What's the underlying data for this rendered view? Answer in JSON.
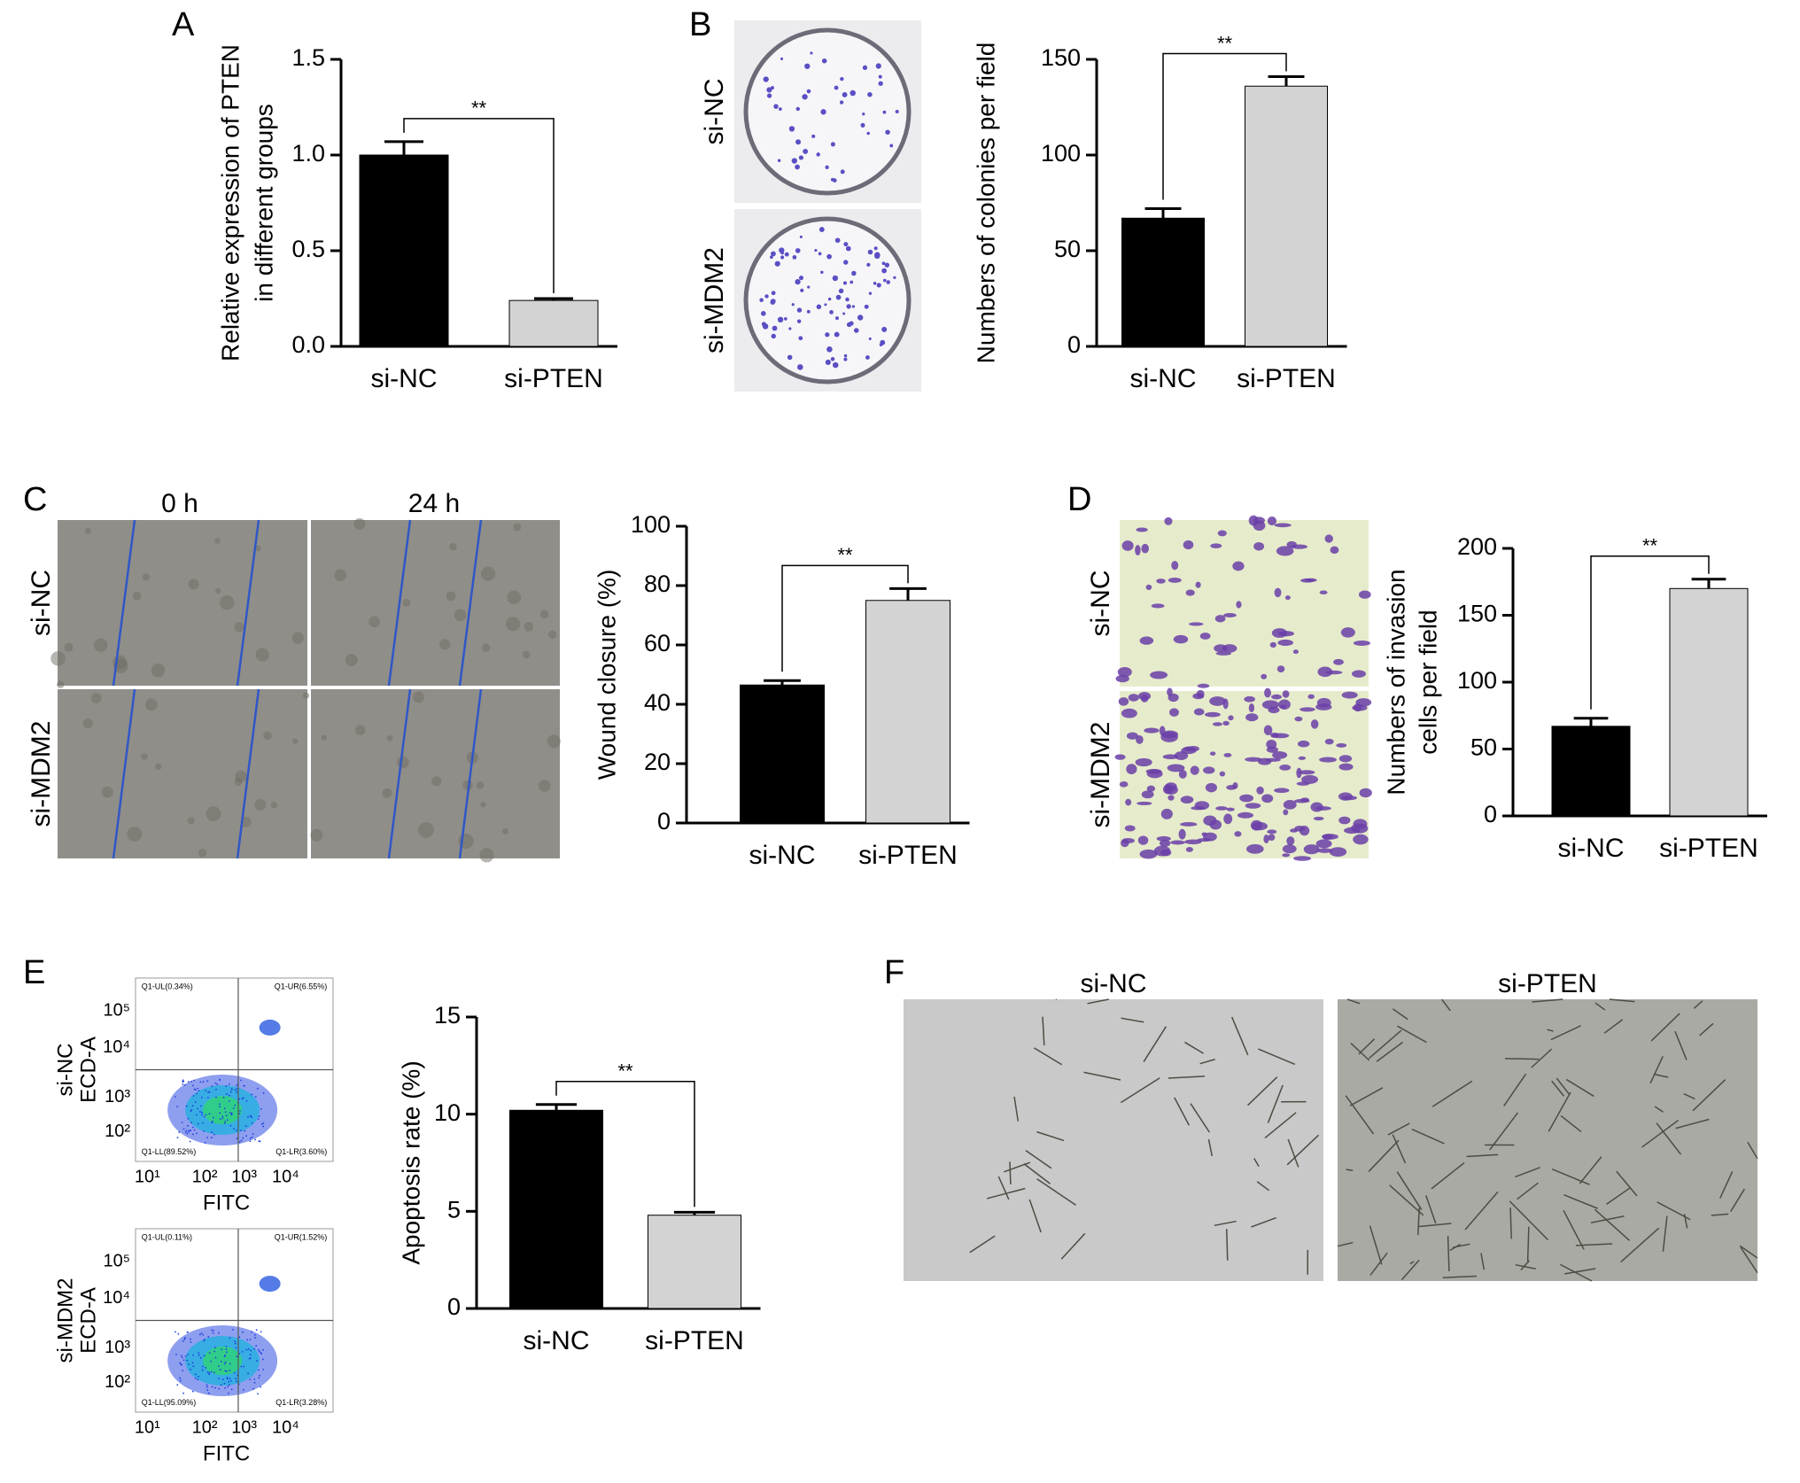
{
  "chart_data": [
    {
      "type": "bar",
      "ylabel": [
        "Relative expression of PTEN",
        "in different groups"
      ],
      "categories": [
        "si-NC",
        "si-PTEN"
      ],
      "values": [
        1.0,
        0.24
      ],
      "errors": [
        0.07,
        0.01
      ],
      "colors": [
        "#000000",
        "#d3d3d3"
      ],
      "ylim": [
        0,
        1.5
      ],
      "yticks": [
        {
          "value": 0,
          "label": "0.0"
        },
        0.5,
        {
          "value": 1,
          "label": "1.0"
        },
        1.5
      ],
      "annotation": "**"
    },
    {
      "type": "bar",
      "ylabel": [
        "Numbers of colonies per field"
      ],
      "categories": [
        "si-NC",
        "si-PTEN"
      ],
      "values": [
        67,
        136
      ],
      "errors": [
        5,
        5
      ],
      "colors": [
        "#000000",
        "#d3d3d3"
      ],
      "ylim": [
        0,
        150
      ],
      "yticks": [
        0,
        50,
        100,
        150
      ],
      "annotation": "**"
    },
    {
      "type": "bar",
      "ylabel": [
        "Wound closure (%)"
      ],
      "categories": [
        "si-NC",
        "si-PTEN"
      ],
      "values": [
        46.5,
        75
      ],
      "errors": [
        1.5,
        4
      ],
      "colors": [
        "#000000",
        "#d3d3d3"
      ],
      "ylim": [
        0,
        100
      ],
      "yticks": [
        0,
        20,
        40,
        60,
        80,
        100
      ],
      "annotation": "**"
    },
    {
      "type": "bar",
      "ylabel": [
        "Numbers of invasion",
        "cells per field"
      ],
      "categories": [
        "si-NC",
        "si-PTEN"
      ],
      "values": [
        67,
        170
      ],
      "errors": [
        6,
        7
      ],
      "colors": [
        "#000000",
        "#d3d3d3"
      ],
      "ylim": [
        0,
        200
      ],
      "yticks": [
        0,
        50,
        100,
        150,
        200
      ],
      "annotation": "**"
    },
    {
      "type": "bar",
      "ylabel": [
        "Apoptosis rate (%)"
      ],
      "categories": [
        "si-NC",
        "si-PTEN"
      ],
      "values": [
        10.2,
        4.8
      ],
      "errors": [
        0.3,
        0.15
      ],
      "colors": [
        "#000000",
        "#d3d3d3"
      ],
      "ylim": [
        0,
        15
      ],
      "yticks": [
        0,
        5,
        10,
        15
      ],
      "annotation": "**"
    }
  ],
  "panel_labels": [
    "A",
    "B",
    "C",
    "D",
    "E",
    "F"
  ],
  "colony_images": {
    "rows": [
      "si-NC",
      "si-MDM2"
    ]
  },
  "wound_images": {
    "columns": [
      "0 h",
      "24 h"
    ],
    "rows": [
      "si-NC",
      "si-MDM2"
    ]
  },
  "invasion_images": {
    "rows": [
      "si-NC",
      "si-MDM2"
    ]
  },
  "tube_images": {
    "columns": [
      "si-NC",
      "si-PTEN"
    ]
  },
  "flow_plots": {
    "xlabel": "FITC",
    "ylabel": "ECD-A",
    "xticks": [
      "10¹",
      "10²",
      "10³",
      "10⁴"
    ],
    "yticks": [
      "10²",
      "10³",
      "10⁴",
      "10⁵"
    ],
    "plots": [
      {
        "group": "si-NC",
        "quadrants": [
          "Q1-UL(0.34%)",
          "Q1-UR(6.55%)",
          "Q1-LL(89.52%)",
          "Q1-LR(3.60%)"
        ]
      },
      {
        "group": "si-MDM2",
        "quadrants": [
          "Q1-UL(0.11%)",
          "Q1-UR(1.52%)",
          "Q1-LL(95.09%)",
          "Q1-LR(3.28%)"
        ]
      }
    ]
  }
}
